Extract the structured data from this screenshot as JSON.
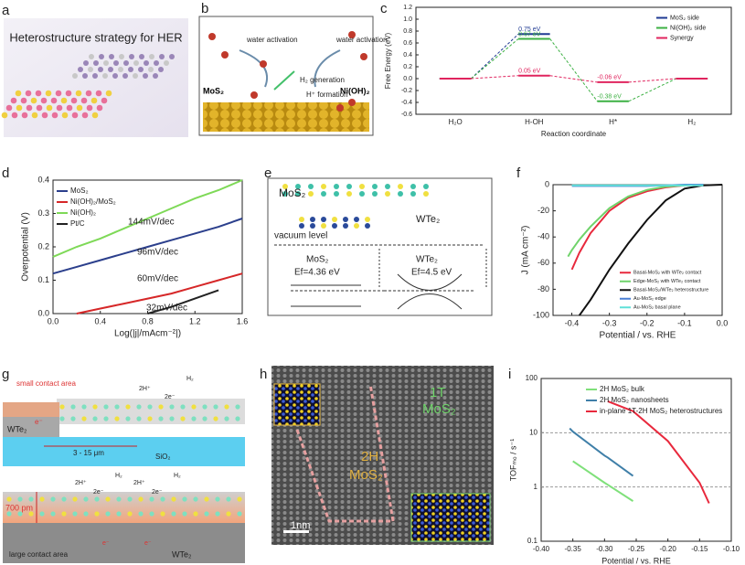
{
  "panel_labels": [
    "a",
    "b",
    "c",
    "d",
    "e",
    "f",
    "g",
    "h",
    "i"
  ],
  "panels": {
    "a": {
      "title": "Heterostructure strategy for HER"
    },
    "b": {
      "labels": [
        "water activation",
        "water activation",
        "H₂ generation",
        "H⁺ formation",
        "MoS₂",
        "Ni(OH)₂"
      ]
    },
    "e": {
      "labels": [
        "MoS₂",
        "WTe₂",
        "vacuum level",
        "MoS₂",
        "Ef=4.36 eV",
        "WTe₂",
        "Ef=4.5 eV"
      ]
    },
    "g": {
      "labels": [
        "small contact area",
        "2H⁺",
        "2e⁻",
        "H₂",
        "WTe₂",
        "e⁻",
        "3 - 15 μm",
        "SiO₂",
        "2H⁺",
        "2e⁻",
        "H₂",
        "2H⁺",
        "2e⁻",
        "H₂",
        "700 pm",
        "e⁻",
        "e⁻",
        "large contact area",
        "WTe₂"
      ]
    },
    "h": {
      "labels": [
        "1T",
        "MoS₂",
        "2H",
        "MoS₂",
        "1nm"
      ]
    }
  },
  "chart_data": [
    {
      "type": "energy",
      "categories": [
        "H₂O",
        "H-OH",
        "H*",
        "H₂"
      ],
      "xlabel": "Reaction coordinate",
      "ylabel": "Free Energy (eV)",
      "ylim": [
        -0.6,
        1.2
      ],
      "yticks": [
        1.2,
        {
          "value": 1,
          "label": "1.0"
        },
        0.8,
        0.6,
        0.4,
        0.2,
        {
          "value": 0,
          "label": "0.0"
        },
        -0.2,
        -0.4,
        -0.6
      ],
      "legend": "upper right",
      "grid": false,
      "series": [
        {
          "name": "MoS₂ side",
          "color": "#1f3a93",
          "values": [
            0,
            0.75,
            null,
            null
          ],
          "value_labels": [
            null,
            "0.75 eV",
            null,
            null
          ]
        },
        {
          "name": "Ni(OH)₂ side",
          "color": "#3cb043",
          "values": [
            0,
            0.67,
            -0.38,
            0
          ],
          "value_labels": [
            null,
            "0.67 eV",
            "-0.38 eV",
            null
          ]
        },
        {
          "name": "Synergy",
          "color": "#e0245e",
          "values": [
            0,
            0.05,
            -0.06,
            0
          ],
          "value_labels": [
            null,
            "0.05 eV",
            "-0.06 eV",
            null
          ]
        }
      ]
    },
    {
      "type": "line",
      "xlabel": "Log(|j|/mAcm⁻²|)",
      "ylabel": "Overpotential (V)",
      "xlim": [
        0,
        1.6
      ],
      "xticks": [
        {
          "value": 0,
          "label": "0.0"
        },
        0.4,
        0.8,
        1.2,
        1.6
      ],
      "ylim": [
        0,
        0.4
      ],
      "yticks": [
        {
          "value": 0,
          "label": "0.0"
        },
        0.1,
        0.2,
        0.3,
        0.4
      ],
      "legend": "upper left",
      "grid": false,
      "x": [
        0,
        0.2,
        0.4,
        0.6,
        0.8,
        1.0,
        1.2,
        1.4,
        1.6
      ],
      "series": [
        {
          "name": "MoS₂",
          "color": "#2b3f8c",
          "values": [
            0.12,
            0.14,
            0.16,
            0.18,
            0.2,
            0.22,
            0.24,
            0.26,
            0.285
          ]
        },
        {
          "name": "Ni(OH)₂/MoS₂",
          "color": "#d62728",
          "values": [
            null,
            0,
            0.015,
            0.03,
            0.045,
            0.06,
            0.08,
            0.1,
            0.12
          ]
        },
        {
          "name": "Ni(OH)₂",
          "color": "#7ed957",
          "values": [
            0.17,
            0.2,
            0.225,
            0.255,
            0.285,
            0.315,
            0.345,
            0.37,
            0.4
          ]
        },
        {
          "name": "Pt/C",
          "color": "#222222",
          "values": [
            null,
            null,
            null,
            null,
            0,
            0.02,
            0.045,
            0.07,
            null
          ]
        }
      ],
      "annotations": [
        "144mV/dec",
        "96mV/dec",
        "60mV/dec",
        "32mV/dec"
      ]
    },
    {
      "type": "line",
      "xlabel": "Potential / vs. RHE",
      "ylabel": "J (mA cm⁻²)",
      "xlim": [
        -0.45,
        0
      ],
      "xticks": [
        -0.4,
        -0.3,
        -0.2,
        -0.1,
        {
          "value": 0,
          "label": "0.0"
        }
      ],
      "ylim": [
        -100,
        0
      ],
      "yticks": [
        0,
        -20,
        -40,
        -60,
        -80,
        -100
      ],
      "legend": "lower right",
      "grid": false,
      "x": [
        -0.41,
        -0.4,
        -0.38,
        -0.35,
        -0.3,
        -0.25,
        -0.2,
        -0.15,
        -0.1,
        -0.05,
        0
      ],
      "series": [
        {
          "name": "Basal-MoS₂ with WTe₂ contact",
          "color": "#e8283c",
          "values": [
            null,
            -65,
            -52,
            -37,
            -20,
            -10,
            -5,
            -2,
            -0.5,
            0,
            null
          ]
        },
        {
          "name": "Edge-MoS₂ with WTe₂ contact",
          "color": "#6fd36a",
          "values": [
            -55,
            -50,
            -42,
            -32,
            -18,
            -9,
            -4,
            -1.5,
            -0.5,
            0,
            null
          ]
        },
        {
          "name": "Basal-MoS₂/WTe₂ heterostructure",
          "color": "#111111",
          "values": [
            null,
            null,
            -100,
            -88,
            -65,
            -45,
            -27,
            -12,
            -3,
            -0.5,
            0
          ]
        },
        {
          "name": "Au-MoS₂ edge",
          "color": "#4a7fd4",
          "values": [
            null,
            -1,
            -1,
            -1,
            -1,
            -1,
            -1,
            -0.5,
            0,
            0,
            null
          ]
        },
        {
          "name": "Au-MoS₂ basal plane",
          "color": "#5fe0d8",
          "values": [
            null,
            -0.5,
            -0.5,
            -0.5,
            -0.5,
            -0.5,
            -0.5,
            -0.5,
            -0.5,
            -0.5,
            null
          ]
        }
      ]
    },
    {
      "type": "line",
      "xlabel": "Potential / vs. RHE",
      "ylabel": "TOFₘₒ / s⁻¹",
      "yscale": "log",
      "xlim": [
        -0.4,
        -0.1
      ],
      "xticks": [
        {
          "value": -0.4,
          "label": "-0.40"
        },
        -0.35,
        {
          "value": -0.3,
          "label": "-0.30"
        },
        -0.25,
        {
          "value": -0.2,
          "label": "-0.20"
        },
        -0.15,
        {
          "value": -0.1,
          "label": "-0.10"
        }
      ],
      "ylim": [
        0.1,
        100
      ],
      "yticks": [
        0.1,
        1,
        10,
        100
      ],
      "legend": "upper right",
      "grid": true,
      "x": [
        -0.355,
        -0.35,
        -0.3,
        -0.295,
        -0.255,
        -0.2,
        -0.15,
        -0.135
      ],
      "series": [
        {
          "name": "2H MoS₂ bulk",
          "color": "#7fe07a",
          "values": [
            null,
            3,
            1.2,
            1.1,
            0.55,
            null,
            null,
            null
          ]
        },
        {
          "name": "2H MoS₂  nanosheets",
          "color": "#3f7fa8",
          "values": [
            12,
            10.5,
            3.8,
            3.5,
            1.6,
            null,
            null,
            null
          ]
        },
        {
          "name": "in-plane 1T-2H MoS₂ heterostructures",
          "color": "#e8283c",
          "values": [
            null,
            null,
            null,
            38,
            25,
            7,
            1.2,
            0.5
          ]
        }
      ]
    }
  ]
}
